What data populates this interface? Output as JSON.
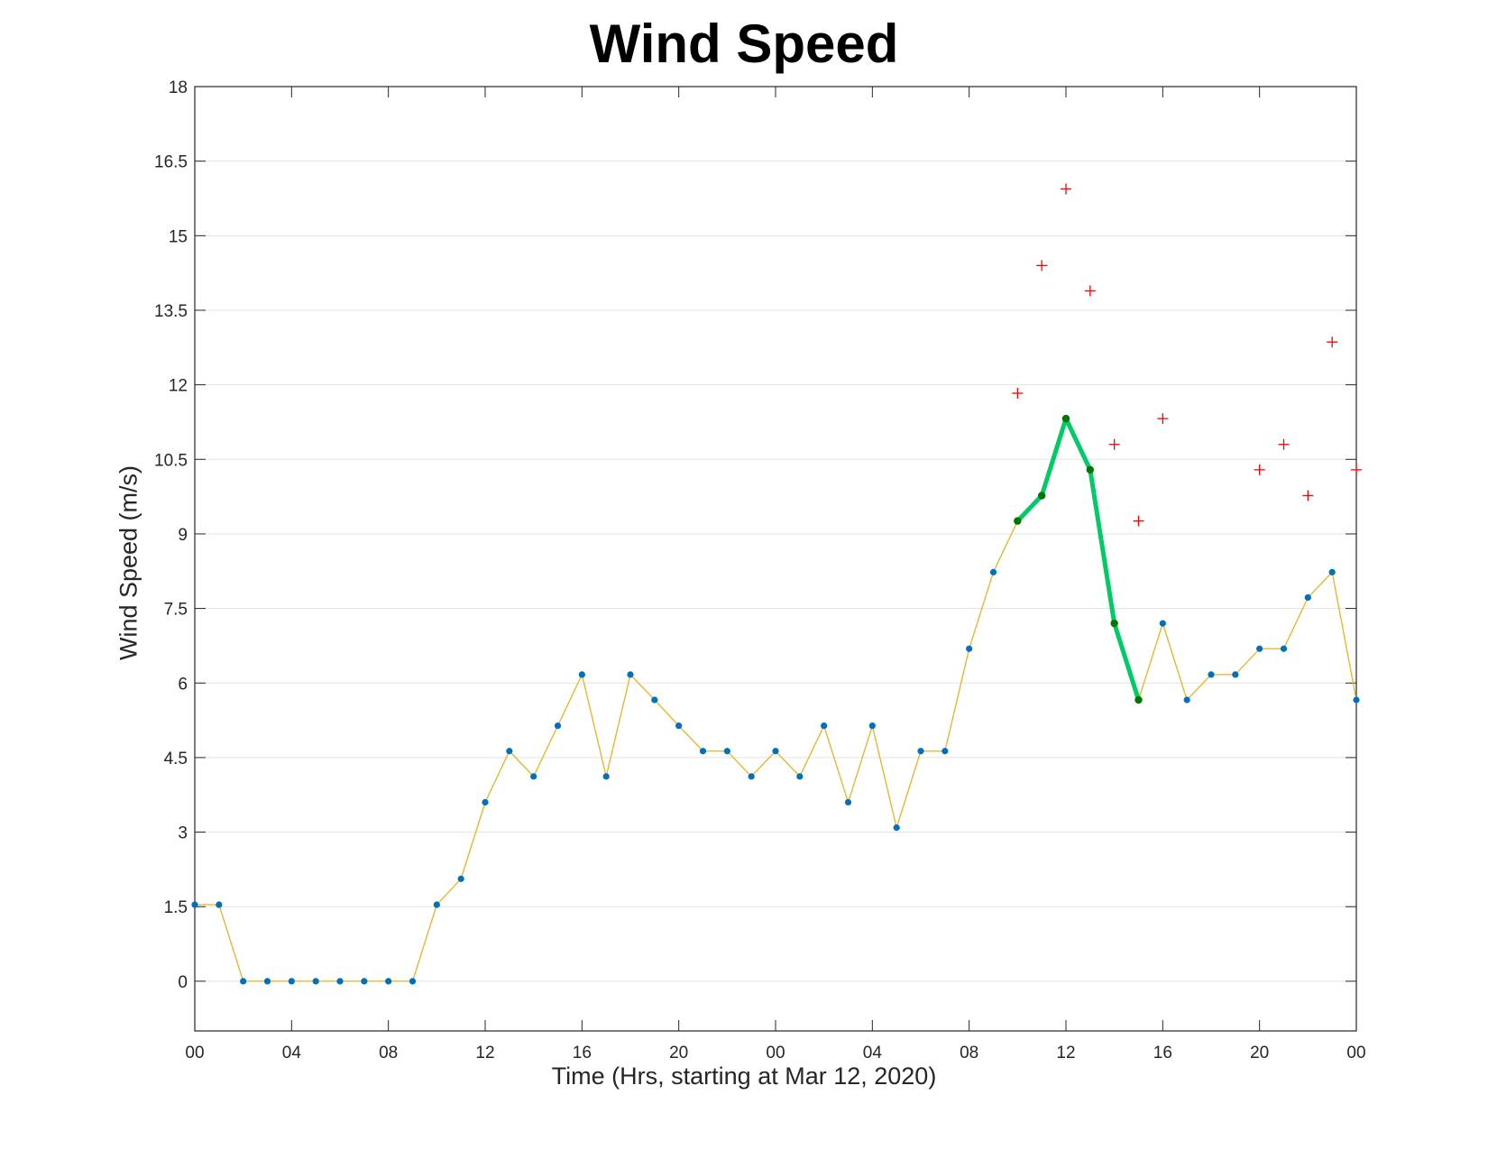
{
  "chart_data": {
    "type": "line",
    "title": "Wind Speed",
    "xlabel": "Time (Hrs, starting at Mar 12, 2020)",
    "ylabel": "Wind Speed (m/s)",
    "ylim": [
      -1,
      18
    ],
    "yticks": [
      "0",
      "1.5",
      "3",
      "4.5",
      "6",
      "7.5",
      "9",
      "10.5",
      "12",
      "13.5",
      "15",
      "16.5",
      "18"
    ],
    "xlim_hours": [
      0,
      48
    ],
    "xticks": [
      {
        "hour": 0,
        "label": "00"
      },
      {
        "hour": 4,
        "label": "04"
      },
      {
        "hour": 8,
        "label": "08"
      },
      {
        "hour": 12,
        "label": "12"
      },
      {
        "hour": 16,
        "label": "16"
      },
      {
        "hour": 20,
        "label": "20"
      },
      {
        "hour": 24,
        "label": "00"
      },
      {
        "hour": 28,
        "label": "04"
      },
      {
        "hour": 32,
        "label": "08"
      },
      {
        "hour": 36,
        "label": "12"
      },
      {
        "hour": 40,
        "label": "16"
      },
      {
        "hour": 44,
        "label": "20"
      },
      {
        "hour": 48,
        "label": "00"
      }
    ],
    "grid": "horizontal",
    "colors": {
      "main_line": "#EDB120",
      "main_marker": "#0072BD",
      "highlight_line": "#00CC66",
      "highlight_marker": "#007700",
      "gust_marker": "#FF0000",
      "grid": "#E3E3E3",
      "axis": "#262626"
    },
    "series": [
      {
        "role": "main",
        "x": [
          0,
          1,
          2,
          3,
          4,
          5,
          6,
          7,
          8,
          9,
          10,
          11,
          12,
          13,
          14,
          15,
          16,
          17,
          18,
          19,
          20,
          21,
          22,
          23,
          24,
          25,
          26,
          27,
          28,
          29,
          30,
          31,
          32,
          33,
          34,
          35,
          36,
          37,
          38,
          39,
          40,
          41,
          42,
          43,
          44,
          45,
          46,
          47,
          48
        ],
        "y": [
          1.54,
          1.54,
          0,
          0,
          0,
          0,
          0,
          0,
          0,
          0,
          1.54,
          2.06,
          3.6,
          4.63,
          4.12,
          5.14,
          6.17,
          4.12,
          6.17,
          5.66,
          5.14,
          4.63,
          4.63,
          4.12,
          4.63,
          4.12,
          5.14,
          3.6,
          5.14,
          3.09,
          4.63,
          4.63,
          6.69,
          8.23,
          9.26,
          9.77,
          11.32,
          10.29,
          7.2,
          5.66,
          7.2,
          5.66,
          6.17,
          6.17,
          6.69,
          6.69,
          7.72,
          8.23,
          5.66
        ]
      },
      {
        "role": "highlight",
        "x": [
          34,
          35,
          36,
          37,
          38,
          39
        ],
        "y": [
          9.26,
          9.77,
          11.32,
          10.29,
          7.2,
          5.66
        ]
      },
      {
        "role": "gusts",
        "x": [
          34,
          35,
          36,
          37,
          38,
          39,
          40,
          44,
          45,
          46,
          47,
          48
        ],
        "y": [
          11.83,
          14.4,
          15.94,
          13.89,
          10.8,
          9.26,
          11.32,
          10.29,
          10.8,
          9.77,
          12.86,
          10.29
        ]
      }
    ]
  }
}
